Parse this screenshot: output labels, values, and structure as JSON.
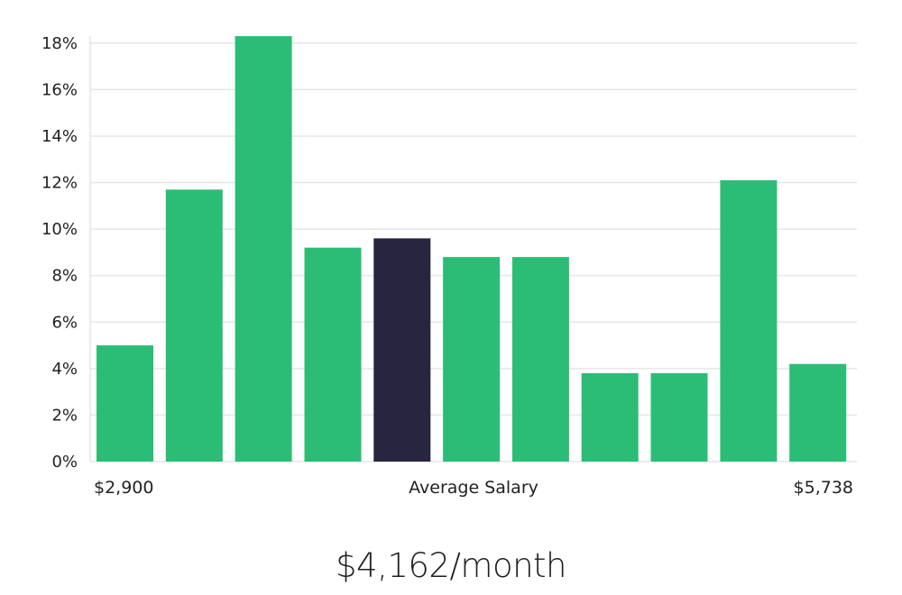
{
  "colors": {
    "bar": "#2bbd76",
    "highlight": "#27253f",
    "grid": "#e6e6e6",
    "text": "#222222"
  },
  "chart_data": {
    "type": "bar",
    "categories": [
      "1",
      "2",
      "3",
      "4",
      "5",
      "6",
      "7",
      "8",
      "9",
      "10",
      "11"
    ],
    "values": [
      5.0,
      11.7,
      18.3,
      9.2,
      9.6,
      8.8,
      8.8,
      3.8,
      3.8,
      12.1,
      4.2
    ],
    "highlight_index": 4,
    "ylim": [
      0,
      19
    ],
    "yticks": [
      0,
      2,
      4,
      6,
      8,
      10,
      12,
      14,
      16,
      18
    ],
    "ytick_labels": [
      "0%",
      "2%",
      "4%",
      "6%",
      "8%",
      "10%",
      "12%",
      "14%",
      "16%",
      "18%"
    ],
    "grid": true,
    "legend": "none",
    "xlabel_left": "$2,900",
    "xlabel_center": "Average Salary",
    "xlabel_right": "$5,738"
  },
  "headline": "$4,162/month"
}
